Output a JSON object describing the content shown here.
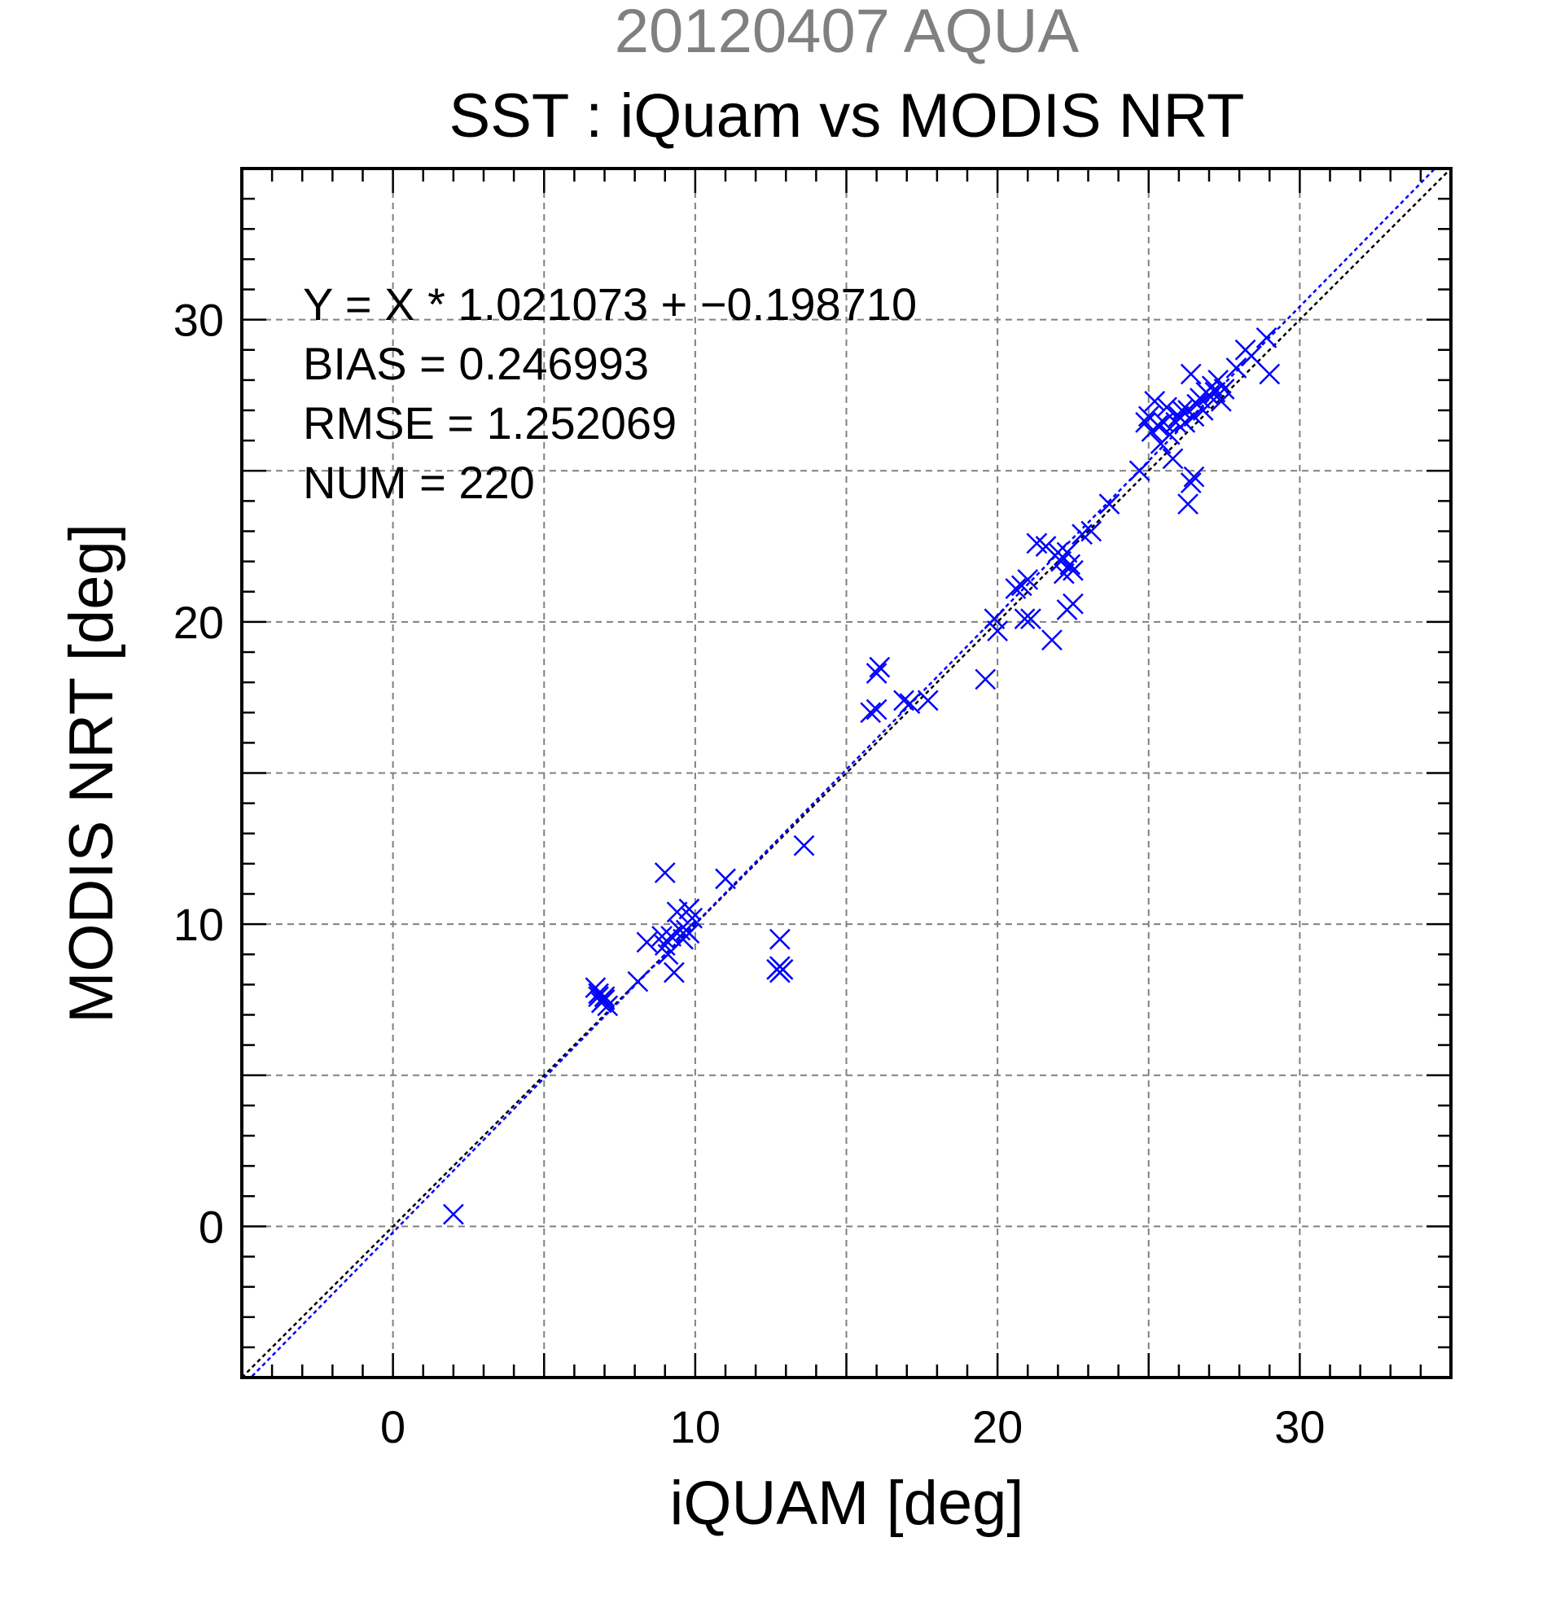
{
  "title": {
    "date_sensor": "20120407 AQUA",
    "main": "SST : iQuam vs MODIS NRT"
  },
  "stats": {
    "regression": "Y = X * 1.021073 + −0.198710",
    "bias": "BIAS = 0.246993",
    "rmse": "RMSE = 1.252069",
    "num": "NUM = 220"
  },
  "colors": {
    "points": "#0000ff",
    "fit_line": "#0000ff",
    "identity_line": "#000000",
    "grid": "#808080",
    "frame": "#000000"
  },
  "chart_data": {
    "type": "scatter",
    "title": "SST : iQuam vs MODIS NRT",
    "subtitle": "20120407 AQUA",
    "xlabel": "iQUAM [deg]",
    "ylabel": "MODIS NRT [deg]",
    "xlim": [
      -5,
      35
    ],
    "ylim": [
      -5,
      35
    ],
    "xticks": [
      0,
      10,
      20,
      30
    ],
    "yticks": [
      0,
      10,
      20,
      30
    ],
    "grid": true,
    "marker": "x",
    "fit": {
      "slope": 1.021073,
      "intercept": -0.19871
    },
    "identity_line": true,
    "points": [
      [
        2.0,
        0.4
      ],
      [
        6.7,
        7.9
      ],
      [
        6.8,
        7.6
      ],
      [
        6.9,
        7.4
      ],
      [
        7.0,
        7.6
      ],
      [
        7.1,
        7.3
      ],
      [
        6.8,
        7.7
      ],
      [
        7.0,
        7.5
      ],
      [
        8.1,
        8.1
      ],
      [
        8.4,
        9.4
      ],
      [
        8.9,
        9.6
      ],
      [
        9.0,
        11.7
      ],
      [
        9.0,
        9.3
      ],
      [
        9.1,
        9.0
      ],
      [
        9.2,
        9.6
      ],
      [
        9.3,
        8.4
      ],
      [
        9.4,
        10.4
      ],
      [
        9.5,
        9.8
      ],
      [
        9.6,
        9.5
      ],
      [
        9.7,
        9.8
      ],
      [
        9.8,
        10.5
      ],
      [
        9.9,
        10.2
      ],
      [
        9.8,
        9.7
      ],
      [
        11.0,
        11.5
      ],
      [
        12.8,
        9.5
      ],
      [
        12.8,
        8.6
      ],
      [
        12.8,
        8.4
      ],
      [
        12.9,
        8.5
      ],
      [
        12.7,
        8.5
      ],
      [
        13.6,
        12.6
      ],
      [
        15.8,
        17.0
      ],
      [
        16.0,
        17.1
      ],
      [
        16.0,
        18.3
      ],
      [
        16.1,
        18.5
      ],
      [
        16.9,
        17.4
      ],
      [
        17.1,
        17.3
      ],
      [
        17.7,
        17.4
      ],
      [
        19.6,
        18.1
      ],
      [
        19.9,
        20.1
      ],
      [
        20.0,
        19.7
      ],
      [
        20.6,
        21.1
      ],
      [
        20.8,
        21.2
      ],
      [
        20.9,
        20.1
      ],
      [
        21.0,
        21.4
      ],
      [
        21.1,
        20.1
      ],
      [
        21.3,
        22.6
      ],
      [
        21.6,
        22.5
      ],
      [
        21.8,
        19.4
      ],
      [
        22.0,
        22.3
      ],
      [
        22.1,
        22.0
      ],
      [
        22.2,
        21.6
      ],
      [
        22.3,
        22.3
      ],
      [
        22.4,
        21.9
      ],
      [
        22.5,
        21.7
      ],
      [
        22.3,
        20.4
      ],
      [
        22.5,
        20.6
      ],
      [
        22.8,
        22.9
      ],
      [
        23.1,
        23.0
      ],
      [
        23.7,
        23.9
      ],
      [
        24.7,
        25.0
      ],
      [
        24.9,
        26.6
      ],
      [
        25.0,
        26.8
      ],
      [
        25.1,
        26.3
      ],
      [
        25.2,
        27.3
      ],
      [
        25.3,
        26.5
      ],
      [
        25.4,
        25.9
      ],
      [
        25.5,
        26.6
      ],
      [
        25.6,
        27.1
      ],
      [
        25.7,
        26.2
      ],
      [
        25.8,
        25.4
      ],
      [
        25.9,
        26.6
      ],
      [
        26.0,
        26.8
      ],
      [
        26.1,
        27.0
      ],
      [
        26.2,
        26.6
      ],
      [
        26.3,
        27.0
      ],
      [
        26.4,
        28.2
      ],
      [
        26.5,
        26.8
      ],
      [
        26.6,
        27.2
      ],
      [
        26.7,
        27.4
      ],
      [
        26.8,
        27.0
      ],
      [
        26.9,
        27.6
      ],
      [
        27.0,
        27.5
      ],
      [
        27.1,
        27.8
      ],
      [
        27.2,
        27.6
      ],
      [
        27.3,
        28.0
      ],
      [
        27.4,
        27.3
      ],
      [
        27.5,
        27.7
      ],
      [
        26.3,
        23.9
      ],
      [
        26.4,
        24.6
      ],
      [
        26.5,
        24.8
      ],
      [
        27.9,
        28.4
      ],
      [
        28.2,
        29.0
      ],
      [
        28.4,
        28.8
      ],
      [
        28.9,
        29.4
      ],
      [
        29.0,
        28.2
      ]
    ]
  }
}
